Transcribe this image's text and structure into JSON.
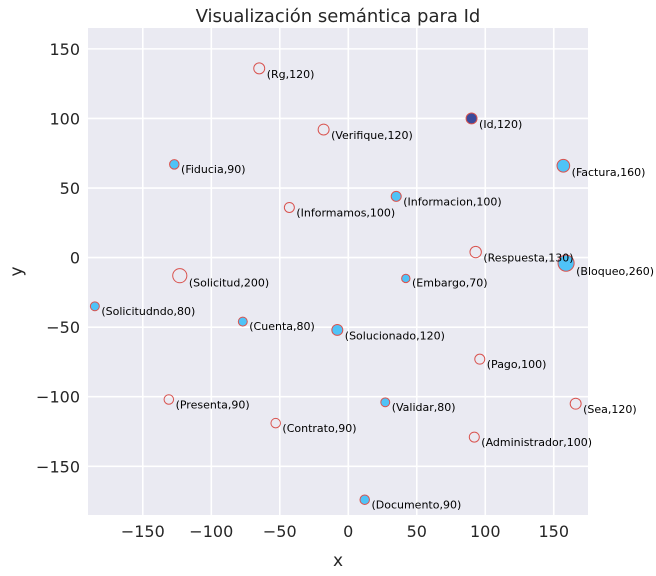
{
  "chart_data": {
    "type": "scatter",
    "title": "Visualización semántica para Id",
    "xlabel": "x",
    "ylabel": "y",
    "xlim": [
      -190,
      175
    ],
    "ylim": [
      -185,
      165
    ],
    "xticks": [
      -150,
      -100,
      -50,
      0,
      50,
      100,
      150
    ],
    "yticks": [
      -150,
      -100,
      -50,
      0,
      50,
      100,
      150
    ],
    "grid": true,
    "colors": {
      "background": "#eaeaf2",
      "grid": "#ffffff",
      "filled": "#4fc3f7",
      "edge": "#d9534f",
      "highlight": "#3b4a9b"
    },
    "points": [
      {
        "label": "(Id,120)",
        "x": 90,
        "y": 100,
        "weight": 120,
        "style": "highlight"
      },
      {
        "label": "(Rg,120)",
        "x": -65,
        "y": 136,
        "weight": 120,
        "style": "hollow"
      },
      {
        "label": "(Verifique,120)",
        "x": -18,
        "y": 92,
        "weight": 120,
        "style": "hollow"
      },
      {
        "label": "(Fiducia,90)",
        "x": -127,
        "y": 67,
        "weight": 90,
        "style": "filled"
      },
      {
        "label": "(Factura,160)",
        "x": 157,
        "y": 66,
        "weight": 160,
        "style": "filled"
      },
      {
        "label": "(Informacion,100)",
        "x": 35,
        "y": 44,
        "weight": 100,
        "style": "filled"
      },
      {
        "label": "(Informamos,100)",
        "x": -43,
        "y": 36,
        "weight": 100,
        "style": "hollow"
      },
      {
        "label": "(Respuesta,130)",
        "x": 93,
        "y": 4,
        "weight": 130,
        "style": "hollow"
      },
      {
        "label": "(Bloqueo,260)",
        "x": 159,
        "y": -4,
        "weight": 260,
        "style": "filled"
      },
      {
        "label": "(Solicitud,200)",
        "x": -123,
        "y": -13,
        "weight": 200,
        "style": "hollow"
      },
      {
        "label": "(Embargo,70)",
        "x": 42,
        "y": -15,
        "weight": 70,
        "style": "filled"
      },
      {
        "label": "(Solicitudndo,80)",
        "x": -185,
        "y": -35,
        "weight": 80,
        "style": "filled"
      },
      {
        "label": "(Cuenta,80)",
        "x": -77,
        "y": -46,
        "weight": 80,
        "style": "filled"
      },
      {
        "label": "(Solucionado,120)",
        "x": -8,
        "y": -52,
        "weight": 120,
        "style": "filled"
      },
      {
        "label": "(Pago,100)",
        "x": 96,
        "y": -73,
        "weight": 100,
        "style": "hollow"
      },
      {
        "label": "(Presenta,90)",
        "x": -131,
        "y": -102,
        "weight": 90,
        "style": "hollow"
      },
      {
        "label": "(Validar,80)",
        "x": 27,
        "y": -104,
        "weight": 80,
        "style": "filled"
      },
      {
        "label": "(Sea,120)",
        "x": 166,
        "y": -105,
        "weight": 120,
        "style": "hollow"
      },
      {
        "label": "(Contrato,90)",
        "x": -53,
        "y": -119,
        "weight": 90,
        "style": "hollow"
      },
      {
        "label": "(Administrador,100)",
        "x": 92,
        "y": -129,
        "weight": 100,
        "style": "hollow"
      },
      {
        "label": "(Documento,90)",
        "x": 12,
        "y": -174,
        "weight": 90,
        "style": "filled"
      }
    ]
  }
}
